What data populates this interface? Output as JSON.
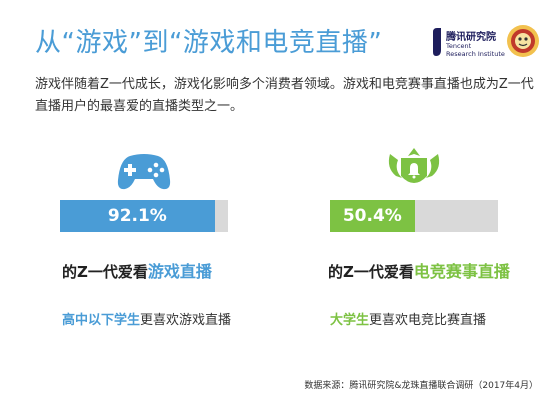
{
  "title": "从“游戏”到“游戏和电竞直播”",
  "logo": {
    "name_cn": "腾讯研究院",
    "name_en_1": "Tencent",
    "name_en_2": "Research Institute"
  },
  "intro": "游戏伴随着Z一代成长，游戏化影响多个消费者领域。游戏和电竞赛事直播也成为Z一代直播用户的最喜爱的直播类型之一。",
  "colors": {
    "blue": "#4a9cd6",
    "green": "#7dc243",
    "track": "#d9d9d9"
  },
  "chart_data": {
    "type": "bar",
    "categories": [
      "游戏直播",
      "电竞赛事直播"
    ],
    "values": [
      92.1,
      50.4
    ],
    "value_labels": [
      "92.1%",
      "50.4%"
    ],
    "ylim": [
      0,
      100
    ]
  },
  "panels": [
    {
      "icon": "gamepad-icon",
      "subtitle_prefix": "的Z一代爱看",
      "subtitle_highlight": "游戏直播",
      "note_highlight": "高中以下学生",
      "note_rest": "更喜欢游戏直播"
    },
    {
      "icon": "crown-badge-icon",
      "subtitle_prefix": "的Z一代爱看",
      "subtitle_highlight": "电竞赛事直播",
      "note_highlight": "大学生",
      "note_rest": "更喜欢电竞比赛直播"
    }
  ],
  "source": "数据来源：腾讯研究院&龙珠直播联合调研（2017年4月）"
}
